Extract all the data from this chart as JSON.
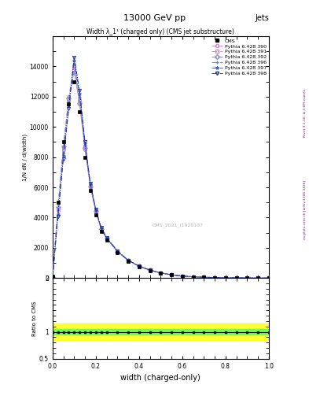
{
  "title": "13000 GeV pp",
  "title_right": "Jets",
  "plot_title": "Width λ_1¹ (charged only) (CMS jet substructure)",
  "xlabel": "width (charged-only)",
  "ylabel_main": "1/N dN / d(width)",
  "ratio_ylabel": "Ratio to CMS",
  "cms_label": "CMS",
  "cms_watermark": "CMS_2021_I1920187",
  "right_label1": "Rivet 3.1.10; ≥ 2.6M events",
  "right_label2": "mcplots.cern.ch [arXiv:1306.3436]",
  "x_values": [
    0.0,
    0.025,
    0.05,
    0.075,
    0.1,
    0.125,
    0.15,
    0.175,
    0.2,
    0.225,
    0.25,
    0.3,
    0.35,
    0.4,
    0.45,
    0.5,
    0.55,
    0.6,
    0.65,
    0.7,
    0.75,
    0.8,
    0.85,
    0.9,
    0.95,
    1.0
  ],
  "cms_y": [
    100,
    5000,
    9000,
    11500,
    13000,
    11000,
    8000,
    5800,
    4200,
    3100,
    2500,
    1700,
    1100,
    750,
    500,
    330,
    200,
    130,
    80,
    50,
    35,
    20,
    12,
    7,
    3,
    0
  ],
  "pythia_390_y": [
    50,
    4500,
    8500,
    12000,
    14000,
    11500,
    8500,
    6000,
    4400,
    3200,
    2600,
    1750,
    1150,
    780,
    520,
    340,
    210,
    135,
    82,
    52,
    36,
    21,
    13,
    7,
    3,
    0
  ],
  "pythia_391_y": [
    60,
    4600,
    8600,
    11800,
    13800,
    11800,
    8700,
    6100,
    4450,
    3250,
    2620,
    1760,
    1160,
    785,
    522,
    342,
    212,
    136,
    83,
    52,
    36,
    21,
    13,
    7,
    3,
    0
  ],
  "pythia_392_y": [
    70,
    4700,
    8700,
    11900,
    13600,
    11600,
    8600,
    6050,
    4420,
    3220,
    2610,
    1755,
    1155,
    782,
    521,
    341,
    211,
    135,
    82,
    52,
    36,
    21,
    13,
    7,
    3,
    0
  ],
  "pythia_396_y": [
    40,
    4300,
    8300,
    11600,
    14200,
    12000,
    8800,
    6150,
    4480,
    3280,
    2650,
    1780,
    1170,
    790,
    525,
    345,
    213,
    137,
    83,
    53,
    37,
    22,
    13,
    7,
    3,
    0
  ],
  "pythia_397_y": [
    30,
    4200,
    8100,
    11400,
    14400,
    12200,
    8900,
    6200,
    4510,
    3310,
    2670,
    1790,
    1175,
    793,
    527,
    346,
    214,
    137,
    84,
    53,
    37,
    22,
    13,
    7,
    3,
    0
  ],
  "pythia_398_y": [
    20,
    4100,
    7900,
    11200,
    14600,
    12400,
    9000,
    6250,
    4540,
    3340,
    2690,
    1800,
    1180,
    796,
    529,
    347,
    215,
    138,
    84,
    54,
    37,
    22,
    13,
    7,
    3,
    0
  ],
  "ylim": [
    0,
    16000
  ],
  "xlim": [
    0,
    1
  ],
  "ratio_ylim": [
    0.5,
    2.0
  ],
  "color_390": "#cc88cc",
  "color_391": "#cc88cc",
  "color_392": "#8888cc",
  "color_396": "#6688cc",
  "color_397": "#4466bb",
  "color_398": "#223399",
  "bg_color": "#ffffff",
  "green_band": 0.05,
  "yellow_band": 0.15,
  "series": [
    {
      "key": "pythia_390_y",
      "color": "#cc88cc",
      "marker": "o",
      "label": "Pythia 6.428 390"
    },
    {
      "key": "pythia_391_y",
      "color": "#cc88cc",
      "marker": "s",
      "label": "Pythia 6.428 391"
    },
    {
      "key": "pythia_392_y",
      "color": "#8888cc",
      "marker": "D",
      "label": "Pythia 6.428 392"
    },
    {
      "key": "pythia_396_y",
      "color": "#6688cc",
      "marker": "+",
      "label": "Pythia 6.428 396"
    },
    {
      "key": "pythia_397_y",
      "color": "#4466bb",
      "marker": "*",
      "label": "Pythia 6.428 397"
    },
    {
      "key": "pythia_398_y",
      "color": "#223399",
      "marker": "v",
      "label": "Pythia 6.428 398"
    }
  ]
}
